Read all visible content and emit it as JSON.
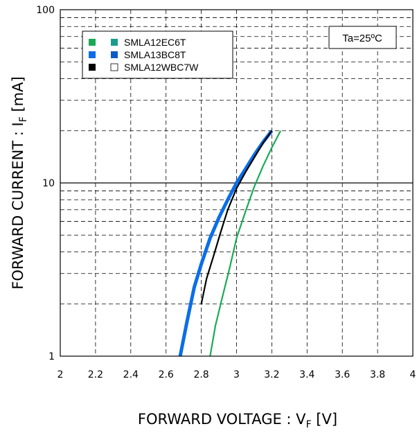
{
  "chart_data": {
    "type": "line",
    "xlabel_main": "FORWARD VOLTAGE : V",
    "xlabel_sub": "F",
    "xlabel_unit": " [V]",
    "ylabel_main": "FORWARD CURRENT : I",
    "ylabel_sub": "F",
    "ylabel_unit": " [mA]",
    "xlim": [
      2,
      4
    ],
    "ylim": [
      1,
      100
    ],
    "yscale": "log",
    "grid": true,
    "x_ticks": [
      "2",
      "2.2",
      "2.4",
      "2.6",
      "2.8",
      "3",
      "3.2",
      "3.4",
      "3.6",
      "3.8",
      "4"
    ],
    "y_ticks": [
      "1",
      "10",
      "100"
    ],
    "annotation": "Ta=25ºC",
    "legend_position": "top-left",
    "series": [
      {
        "name": "SMLA12EC6T",
        "color": "#1aaa55",
        "points": [
          [
            2.85,
            1
          ],
          [
            2.88,
            1.5
          ],
          [
            2.92,
            2.2
          ],
          [
            2.96,
            3.2
          ],
          [
            3.0,
            4.8
          ],
          [
            3.05,
            6.8
          ],
          [
            3.1,
            9.5
          ],
          [
            3.15,
            12.5
          ],
          [
            3.2,
            16.0
          ],
          [
            3.25,
            20.0
          ]
        ]
      },
      {
        "name": "SMLA13BC8T",
        "color": "#0a6ee8",
        "points": [
          [
            2.68,
            1
          ],
          [
            2.72,
            1.6
          ],
          [
            2.76,
            2.5
          ],
          [
            2.8,
            3.4
          ],
          [
            2.85,
            4.8
          ],
          [
            2.9,
            6.3
          ],
          [
            2.95,
            8.0
          ],
          [
            3.0,
            10.0
          ],
          [
            3.05,
            12.0
          ],
          [
            3.1,
            14.5
          ],
          [
            3.15,
            17.2
          ],
          [
            3.2,
            20.0
          ]
        ]
      },
      {
        "name": "SMLA12WBC7W",
        "color": "#000000",
        "points": [
          [
            2.8,
            2.0
          ],
          [
            2.83,
            2.8
          ],
          [
            2.87,
            3.8
          ],
          [
            2.91,
            5.2
          ],
          [
            2.95,
            7.0
          ],
          [
            3.0,
            9.3
          ],
          [
            3.05,
            11.5
          ],
          [
            3.1,
            14.0
          ],
          [
            3.15,
            17.0
          ],
          [
            3.2,
            20.0
          ]
        ]
      }
    ],
    "legend": [
      {
        "label": "SMLA12EC6T",
        "swatch1": "#1aaa55",
        "swatch2": "#1a9c8c",
        "swatch2_hollow": false
      },
      {
        "label": "SMLA13BC8T",
        "swatch1": "#0a6ee8",
        "swatch2": "#0a5cc4",
        "swatch2_hollow": false
      },
      {
        "label": "SMLA12WBC7W",
        "swatch1": "#000000",
        "swatch2": "#ffffff",
        "swatch2_hollow": true
      }
    ]
  }
}
